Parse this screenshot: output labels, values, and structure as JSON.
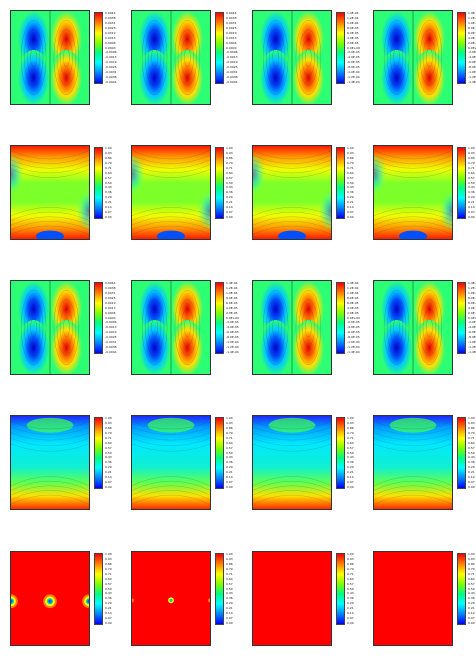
{
  "figure": {
    "panels": [
      {
        "row": 1,
        "col": 1,
        "style": "two-lobe",
        "legend_ticks": [
          "0.0044",
          "0.0038",
          "0.0031",
          "0.0025",
          "0.0019",
          "0.0013",
          "0.0006",
          "0.0000",
          "-0.0006",
          "-0.0013",
          "-0.0019",
          "-0.0025",
          "-0.0031",
          "-0.0038",
          "-0.0044"
        ]
      },
      {
        "row": 1,
        "col": 2,
        "style": "two-lobe",
        "legend_ticks": [
          "0.0044",
          "0.0038",
          "0.0031",
          "0.0025",
          "0.0019",
          "0.0013",
          "0.0006",
          "0.0000",
          "-0.0006",
          "-0.0013",
          "-0.0019",
          "-0.0025",
          "-0.0031",
          "-0.0038",
          "-0.0044"
        ]
      },
      {
        "row": 1,
        "col": 3,
        "style": "two-lobe",
        "legend_ticks": [
          "1.4E-04",
          "1.2E-04",
          "1.0E-04",
          "8.0E-05",
          "6.0E-05",
          "4.0E-05",
          "2.0E-05",
          "0.0E+00",
          "-2.0E-05",
          "-4.0E-05",
          "-6.0E-05",
          "-8.0E-05",
          "-1.0E-04",
          "-1.2E-04",
          "-1.4E-04"
        ]
      },
      {
        "row": 1,
        "col": 4,
        "style": "two-lobe",
        "legend_ticks": [
          "1.4E-04",
          "1.2E-04",
          "1.0E-04",
          "8.0E-05",
          "6.0E-05",
          "4.0E-05",
          "2.0E-05",
          "0.0E+00",
          "-2.0E-05",
          "-4.0E-05",
          "-6.0E-05",
          "-8.0E-05",
          "-1.0E-04",
          "-1.2E-04",
          "-1.4E-04"
        ]
      },
      {
        "row": 2,
        "col": 1,
        "style": "hot-corners",
        "legend_ticks": [
          "1.00",
          "0.93",
          "0.86",
          "0.79",
          "0.71",
          "0.64",
          "0.57",
          "0.50",
          "0.43",
          "0.36",
          "0.29",
          "0.21",
          "0.14",
          "0.07",
          "0.00"
        ]
      },
      {
        "row": 2,
        "col": 2,
        "style": "hot-corners",
        "legend_ticks": [
          "1.00",
          "0.93",
          "0.86",
          "0.79",
          "0.71",
          "0.64",
          "0.57",
          "0.50",
          "0.43",
          "0.36",
          "0.29",
          "0.21",
          "0.14",
          "0.07",
          "0.00"
        ]
      },
      {
        "row": 2,
        "col": 3,
        "style": "hot-corners",
        "legend_ticks": [
          "1.00",
          "0.93",
          "0.86",
          "0.79",
          "0.71",
          "0.64",
          "0.57",
          "0.50",
          "0.43",
          "0.36",
          "0.29",
          "0.21",
          "0.14",
          "0.07",
          "0.00"
        ]
      },
      {
        "row": 2,
        "col": 4,
        "style": "hot-corners",
        "legend_ticks": [
          "1.00",
          "0.93",
          "0.86",
          "0.79",
          "0.71",
          "0.64",
          "0.57",
          "0.50",
          "0.43",
          "0.36",
          "0.29",
          "0.21",
          "0.14",
          "0.07",
          "0.00"
        ]
      },
      {
        "row": 3,
        "col": 1,
        "style": "two-lobe",
        "legend_ticks": [
          "0.0044",
          "0.0038",
          "0.0031",
          "0.0025",
          "0.0019",
          "0.0013",
          "0.0006",
          "0.0000",
          "-0.0006",
          "-0.0013",
          "-0.0019",
          "-0.0025",
          "-0.0031",
          "-0.0038",
          "-0.0044"
        ]
      },
      {
        "row": 3,
        "col": 2,
        "style": "two-lobe",
        "legend_ticks": [
          "1.4E-04",
          "1.2E-04",
          "1.0E-04",
          "8.0E-05",
          "6.0E-05",
          "4.0E-05",
          "2.0E-05",
          "0.0E+00",
          "-2.0E-05",
          "-4.0E-05",
          "-6.0E-05",
          "-8.0E-05",
          "-1.0E-04",
          "-1.2E-04",
          "-1.4E-04"
        ]
      },
      {
        "row": 3,
        "col": 3,
        "style": "two-lobe",
        "legend_ticks": [
          "1.4E-04",
          "1.2E-04",
          "1.0E-04",
          "8.0E-05",
          "6.0E-05",
          "4.0E-05",
          "2.0E-05",
          "0.0E+00",
          "-2.0E-05",
          "-4.0E-05",
          "-6.0E-05",
          "-8.0E-05",
          "-1.0E-04",
          "-1.2E-04",
          "-1.4E-04"
        ]
      },
      {
        "row": 3,
        "col": 4,
        "style": "two-lobe",
        "legend_ticks": [
          "1.4E-04",
          "1.2E-04",
          "1.0E-04",
          "8.0E-05",
          "6.0E-05",
          "4.0E-05",
          "2.0E-05",
          "0.0E+00",
          "-2.0E-05",
          "-4.0E-05",
          "-6.0E-05",
          "-8.0E-05",
          "-1.0E-04",
          "-1.2E-04",
          "-1.4E-04"
        ]
      },
      {
        "row": 4,
        "col": 1,
        "style": "cool-center",
        "legend_ticks": [
          "1.00",
          "0.93",
          "0.86",
          "0.79",
          "0.71",
          "0.64",
          "0.57",
          "0.50",
          "0.43",
          "0.36",
          "0.29",
          "0.21",
          "0.14",
          "0.07",
          "0.00"
        ]
      },
      {
        "row": 4,
        "col": 2,
        "style": "cool-center",
        "legend_ticks": [
          "1.00",
          "0.93",
          "0.86",
          "0.79",
          "0.71",
          "0.64",
          "0.57",
          "0.50",
          "0.43",
          "0.36",
          "0.29",
          "0.21",
          "0.14",
          "0.07",
          "0.00"
        ]
      },
      {
        "row": 4,
        "col": 3,
        "style": "cool-center",
        "legend_ticks": [
          "1.00",
          "0.93",
          "0.86",
          "0.79",
          "0.71",
          "0.64",
          "0.57",
          "0.50",
          "0.43",
          "0.36",
          "0.29",
          "0.21",
          "0.14",
          "0.07",
          "0.00"
        ]
      },
      {
        "row": 4,
        "col": 4,
        "style": "cool-center",
        "legend_ticks": [
          "1.00",
          "0.93",
          "0.86",
          "0.79",
          "0.71",
          "0.64",
          "0.57",
          "0.50",
          "0.43",
          "0.36",
          "0.29",
          "0.21",
          "0.14",
          "0.07",
          "0.00"
        ]
      },
      {
        "row": 5,
        "col": 1,
        "style": "red-spots-3",
        "legend_ticks": [
          "1.00",
          "0.93",
          "0.86",
          "0.79",
          "0.71",
          "0.64",
          "0.57",
          "0.50",
          "0.43",
          "0.36",
          "0.29",
          "0.21",
          "0.14",
          "0.07",
          "0.00"
        ]
      },
      {
        "row": 5,
        "col": 2,
        "style": "red-spots-1",
        "legend_ticks": [
          "1.00",
          "0.93",
          "0.86",
          "0.79",
          "0.71",
          "0.64",
          "0.57",
          "0.50",
          "0.43",
          "0.36",
          "0.29",
          "0.21",
          "0.14",
          "0.07",
          "0.00"
        ]
      },
      {
        "row": 5,
        "col": 3,
        "style": "red-flat",
        "legend_ticks": [
          "1.00",
          "0.93",
          "0.86",
          "0.79",
          "0.71",
          "0.64",
          "0.57",
          "0.50",
          "0.43",
          "0.36",
          "0.29",
          "0.21",
          "0.14",
          "0.07",
          "0.00"
        ]
      },
      {
        "row": 5,
        "col": 4,
        "style": "red-flat",
        "legend_ticks": [
          "1.00",
          "0.93",
          "0.86",
          "0.79",
          "0.71",
          "0.64",
          "0.57",
          "0.50",
          "0.43",
          "0.36",
          "0.29",
          "0.21",
          "0.14",
          "0.07",
          "0.00"
        ]
      }
    ]
  },
  "colors": {
    "colormap": [
      "#ff0000",
      "#ff4000",
      "#ff8000",
      "#ffbf00",
      "#ffff00",
      "#bfff00",
      "#80ff00",
      "#40ff40",
      "#00ff80",
      "#00ffbf",
      "#00ffff",
      "#00bfff",
      "#0080ff",
      "#0040ff",
      "#0000ff"
    ]
  }
}
